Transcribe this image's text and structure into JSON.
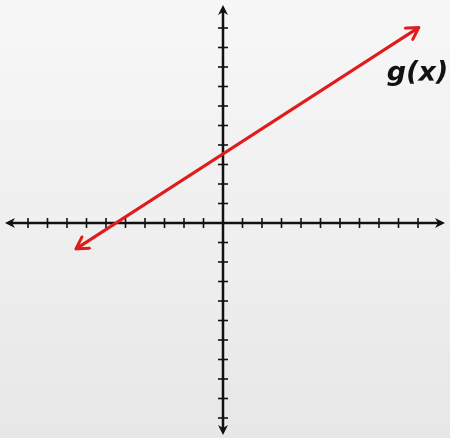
{
  "chart_data": {
    "type": "line",
    "title": "",
    "xlabel": "",
    "ylabel": "",
    "xlim": [
      -11,
      11
    ],
    "ylim": [
      -11,
      11
    ],
    "grid": false,
    "x_ticks": [
      -10,
      -9,
      -8,
      -7,
      -6,
      -5,
      -4,
      -3,
      -2,
      -1,
      1,
      2,
      3,
      4,
      5,
      6,
      7,
      8,
      9,
      10
    ],
    "y_ticks": [
      -10,
      -9,
      -8,
      -7,
      -6,
      -5,
      -4,
      -3,
      -2,
      -1,
      1,
      2,
      3,
      4,
      5,
      6,
      7,
      8,
      9,
      10
    ],
    "series": [
      {
        "name": "g(x)",
        "color": "#e01b1b",
        "x": [
          -7.5,
          10
        ],
        "y": [
          -1.3,
          10
        ],
        "arrows": "both"
      }
    ],
    "annotations": [
      {
        "text": "g(x)",
        "x": 8.4,
        "y": 7.3
      }
    ]
  },
  "colors": {
    "axis": "#111111",
    "line": "#e01b1b"
  }
}
